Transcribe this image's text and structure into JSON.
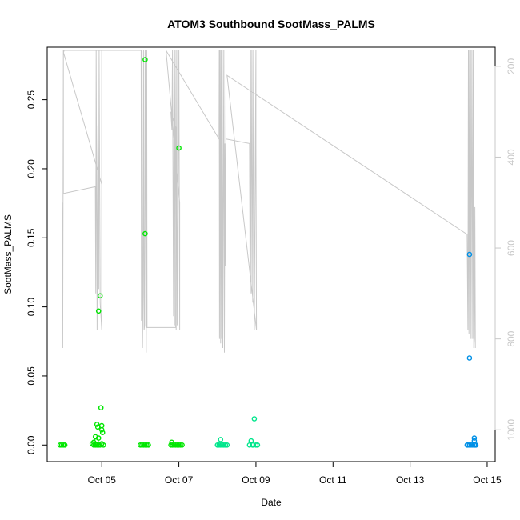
{
  "chart_data": {
    "type": "scatter",
    "title": "ATOM3 Southbound SootMass_PALMS",
    "xlabel": "Date",
    "ylabel": "SootMass_PALMS",
    "x_date_ticks": [
      "2016-10-05",
      "2016-10-07",
      "2016-10-09",
      "2016-10-11",
      "2016-10-13",
      "2016-10-15"
    ],
    "x_tick_labels": [
      "Oct 05",
      "Oct 07",
      "Oct 09",
      "Oct 11",
      "Oct 13",
      "Oct 15"
    ],
    "xlim": [
      "2016-10-03 14:00",
      "2016-10-15 05:00"
    ],
    "ylim": [
      -0.012,
      0.288
    ],
    "y_ticks": [
      0.0,
      0.05,
      0.1,
      0.15,
      0.2,
      0.25
    ],
    "y_tick_labels": [
      "0.00",
      "0.05",
      "0.10",
      "0.15",
      "0.20",
      "0.25"
    ],
    "right_axis": {
      "ticks": [
        200,
        400,
        600,
        800,
        1000
      ],
      "tick_labels": [
        "200",
        "400",
        "600",
        "800",
        "1000"
      ],
      "ylim_top": 158,
      "ylim_bottom": 1070,
      "color": "#c8c8c8"
    },
    "line_series": {
      "color": "#c8c8c8",
      "points": [
        [
          "2016-10-03 23:20",
          500
        ],
        [
          "2016-10-03 23:40",
          820
        ],
        [
          "2016-10-04 00:05",
          165
        ],
        [
          "2016-10-04 00:05",
          480
        ],
        [
          "2016-10-04 20:00",
          465
        ],
        [
          "2016-10-04 20:15",
          700
        ],
        [
          "2016-10-04 20:30",
          165
        ],
        [
          "2016-10-04 21:05",
          780
        ],
        [
          "2016-10-04 21:35",
          330
        ],
        [
          "2016-10-04 22:05",
          690
        ],
        [
          "2016-10-04 22:20",
          165
        ],
        [
          "2016-10-04 23:00",
          720
        ],
        [
          "2016-10-05 00:00",
          780
        ],
        [
          "2016-10-05 00:00",
          165
        ],
        [
          "2016-10-05 00:00",
          460
        ],
        [
          "2016-10-04 00:10",
          170
        ],
        [
          "2016-10-04 00:30",
          165
        ],
        [
          "2016-10-06 00:30",
          165
        ],
        [
          "2016-10-06 00:40",
          760
        ],
        [
          "2016-10-06 01:00",
          165
        ],
        [
          "2016-10-06 01:20",
          820
        ],
        [
          "2016-10-06 01:40",
          700
        ],
        [
          "2016-10-06 02:00",
          165
        ],
        [
          "2016-10-06 02:20",
          780
        ],
        [
          "2016-10-06 02:40",
          770
        ],
        [
          "2016-10-06 03:00",
          165
        ],
        [
          "2016-10-06 03:40",
          830
        ],
        [
          "2016-10-06 04:00",
          165
        ],
        [
          "2016-10-06 04:10",
          775
        ],
        [
          "2016-10-06 22:00",
          775
        ],
        [
          "2016-10-06 22:10",
          335
        ],
        [
          "2016-10-06 19:00",
          300
        ],
        [
          "2016-10-06 19:40",
          340
        ],
        [
          "2016-10-06 20:00",
          165
        ],
        [
          "2016-10-06 20:40",
          750
        ],
        [
          "2016-10-06 21:00",
          165
        ],
        [
          "2016-10-06 21:20",
          770
        ],
        [
          "2016-10-06 21:40",
          165
        ],
        [
          "2016-10-06 22:20",
          780
        ],
        [
          "2016-10-06 22:40",
          165
        ],
        [
          "2016-10-06 23:00",
          770
        ],
        [
          "2016-10-06 23:30",
          500
        ],
        [
          "2016-10-07 00:00",
          165
        ],
        [
          "2016-10-07 00:30",
          780
        ],
        [
          "2016-10-07 00:30",
          500
        ],
        [
          "2016-10-06 16:00",
          165
        ],
        [
          "2016-10-08 01:00",
          360
        ],
        [
          "2016-10-08 01:10",
          165
        ],
        [
          "2016-10-08 01:20",
          800
        ],
        [
          "2016-10-08 01:40",
          165
        ],
        [
          "2016-10-08 02:00",
          810
        ],
        [
          "2016-10-08 02:20",
          165
        ],
        [
          "2016-10-08 02:40",
          800
        ],
        [
          "2016-10-08 03:00",
          165
        ],
        [
          "2016-10-08 03:20",
          820
        ],
        [
          "2016-10-08 04:00",
          165
        ],
        [
          "2016-10-08 04:20",
          830
        ],
        [
          "2016-10-08 04:40",
          370
        ],
        [
          "2016-10-08 05:00",
          640
        ],
        [
          "2016-10-08 05:20",
          220
        ],
        [
          "2016-10-08 05:20",
          360
        ],
        [
          "2016-10-08 20:00",
          370
        ],
        [
          "2016-10-08 20:20",
          680
        ],
        [
          "2016-10-08 20:40",
          165
        ],
        [
          "2016-10-08 21:00",
          700
        ],
        [
          "2016-10-08 21:30",
          165
        ],
        [
          "2016-10-08 22:00",
          720
        ],
        [
          "2016-10-08 22:30",
          165
        ],
        [
          "2016-10-08 23:00",
          780
        ],
        [
          "2016-10-09 00:00",
          165
        ],
        [
          "2016-10-09 00:00",
          380
        ],
        [
          "2016-10-09 00:20",
          780
        ],
        [
          "2016-10-08 06:00",
          220
        ],
        [
          "2016-10-14 11:30",
          570
        ],
        [
          "2016-10-14 12:00",
          780
        ],
        [
          "2016-10-14 12:20",
          165
        ],
        [
          "2016-10-14 12:40",
          790
        ],
        [
          "2016-10-14 13:00",
          165
        ],
        [
          "2016-10-14 13:20",
          800
        ],
        [
          "2016-10-14 13:40",
          165
        ],
        [
          "2016-10-14 14:00",
          800
        ],
        [
          "2016-10-14 14:30",
          165
        ],
        [
          "2016-10-14 15:00",
          800
        ],
        [
          "2016-10-14 15:20",
          165
        ],
        [
          "2016-10-14 15:40",
          820
        ],
        [
          "2016-10-14 16:00",
          800
        ],
        [
          "2016-10-14 16:20",
          510
        ],
        [
          "2016-10-14 16:40",
          820
        ]
      ]
    },
    "series": [
      {
        "color": "#00e600",
        "points": [
          [
            "2016-10-03 22:00",
            0.0
          ],
          [
            "2016-10-03 23:00",
            0.0
          ],
          [
            "2016-10-04 00:00",
            0.0
          ],
          [
            "2016-10-04 01:00",
            0.0
          ],
          [
            "2016-10-04 18:00",
            0.001
          ],
          [
            "2016-10-04 19:00",
            0.002
          ],
          [
            "2016-10-04 20:00",
            0.0
          ],
          [
            "2016-10-04 20:30",
            0.003
          ],
          [
            "2016-10-04 21:00",
            0.015
          ],
          [
            "2016-10-04 21:30",
            0.013
          ],
          [
            "2016-10-04 22:00",
            0.005
          ],
          [
            "2016-10-04 22:00",
            0.097
          ],
          [
            "2016-10-04 23:00",
            0.108
          ],
          [
            "2016-10-04 23:30",
            0.027
          ],
          [
            "2016-10-05 00:00",
            0.014
          ],
          [
            "2016-10-05 00:00",
            0.011
          ],
          [
            "2016-10-05 00:30",
            0.009
          ],
          [
            "2016-10-04 20:00",
            0.006
          ],
          [
            "2016-10-05 00:00",
            0.001
          ],
          [
            "2016-10-04 23:00",
            0.0
          ],
          [
            "2016-10-05 01:00",
            0.0
          ],
          [
            "2016-10-04 22:00",
            0.0
          ],
          [
            "2016-10-04 21:00",
            0.0
          ],
          [
            "2016-10-04 19:00",
            0.0
          ],
          [
            "2016-10-06 00:00",
            0.0
          ],
          [
            "2016-10-06 01:00",
            0.0
          ],
          [
            "2016-10-06 02:00",
            0.0
          ],
          [
            "2016-10-06 03:00",
            0.0
          ],
          [
            "2016-10-06 04:00",
            0.0
          ],
          [
            "2016-10-06 05:00",
            0.0
          ],
          [
            "2016-10-06 03:00",
            0.279
          ],
          [
            "2016-10-06 03:00",
            0.153
          ],
          [
            "2016-10-06 22:00",
            0.0
          ],
          [
            "2016-10-06 23:00",
            0.0
          ],
          [
            "2016-10-07 00:00",
            0.0
          ],
          [
            "2016-10-07 01:00",
            0.0
          ],
          [
            "2016-10-07 00:00",
            0.215
          ],
          [
            "2016-10-06 21:00",
            0.0
          ],
          [
            "2016-10-06 20:00",
            0.0
          ],
          [
            "2016-10-07 02:00",
            0.0
          ],
          [
            "2016-10-06 19:00",
            0.0
          ],
          [
            "2016-10-06 19:30",
            0.002
          ]
        ]
      },
      {
        "color": "#00e68c",
        "points": [
          [
            "2016-10-08 00:00",
            0.0
          ],
          [
            "2016-10-08 01:00",
            0.0
          ],
          [
            "2016-10-08 02:00",
            0.004
          ],
          [
            "2016-10-08 03:00",
            0.0
          ],
          [
            "2016-10-08 04:00",
            0.0
          ],
          [
            "2016-10-08 05:00",
            0.0
          ],
          [
            "2016-10-08 06:00",
            0.0
          ],
          [
            "2016-10-08 20:00",
            0.0
          ],
          [
            "2016-10-08 21:00",
            0.003
          ],
          [
            "2016-10-08 22:00",
            0.0
          ],
          [
            "2016-10-08 23:00",
            0.019
          ],
          [
            "2016-10-09 00:00",
            0.0
          ],
          [
            "2016-10-09 01:00",
            0.0
          ],
          [
            "2016-10-08 22:00",
            0.0
          ],
          [
            "2016-10-08 03:00",
            0.0
          ],
          [
            "2016-10-08 02:00",
            0.0
          ]
        ]
      },
      {
        "color": "#0090e6",
        "points": [
          [
            "2016-10-14 12:00",
            0.0
          ],
          [
            "2016-10-14 13:00",
            0.0
          ],
          [
            "2016-10-14 14:00",
            0.0
          ],
          [
            "2016-10-14 15:00",
            0.0
          ],
          [
            "2016-10-14 16:00",
            0.0
          ],
          [
            "2016-10-14 17:00",
            0.0
          ],
          [
            "2016-10-14 13:00",
            0.138
          ],
          [
            "2016-10-14 13:00",
            0.063
          ],
          [
            "2016-10-14 16:00",
            0.005
          ],
          [
            "2016-10-14 16:00",
            0.003
          ],
          [
            "2016-10-14 16:30",
            0.0
          ],
          [
            "2016-10-14 11:30",
            0.0
          ]
        ]
      }
    ],
    "grid": false,
    "legend": "none"
  }
}
